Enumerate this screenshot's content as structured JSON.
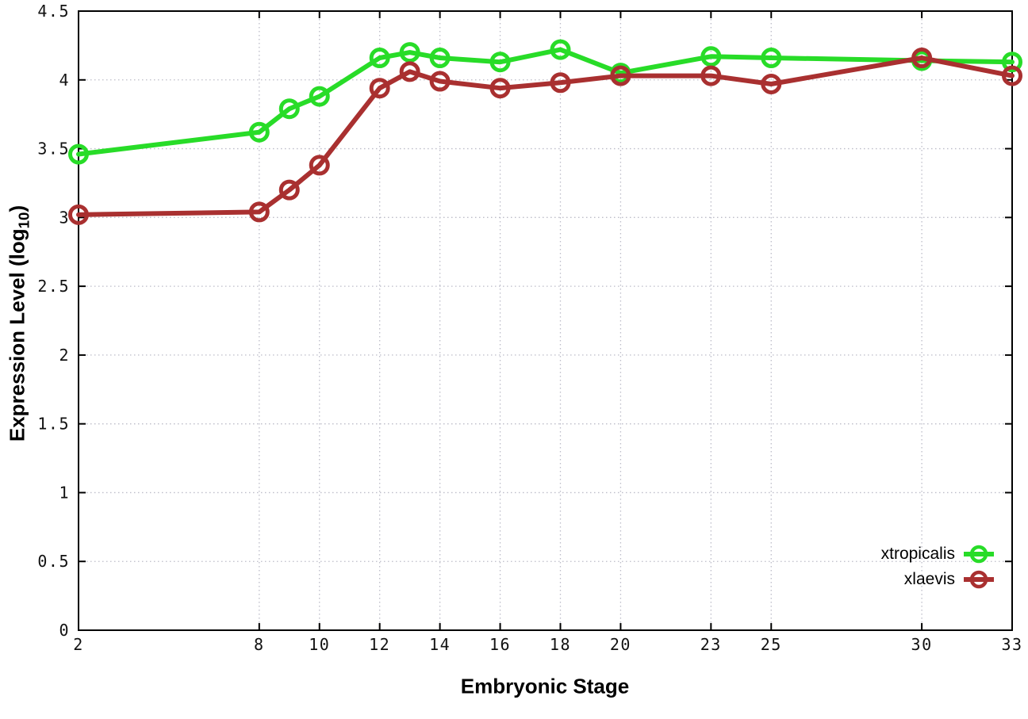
{
  "figure": {
    "background": "#ffffff",
    "border_color": "#000000",
    "grid_color": "#bcbcc8"
  },
  "chart_data": {
    "type": "line",
    "title": "",
    "xlabel": "Embryonic Stage",
    "ylabel": "Expression Level (log10)",
    "ylabel_parts": {
      "prefix": "Expression Level (log",
      "sub": "10",
      "suffix": ")"
    },
    "xlim": [
      2,
      33
    ],
    "ylim": [
      0,
      4.5
    ],
    "grid": true,
    "legend_position": "bottom-right",
    "marker": "open-circle",
    "x": [
      2,
      8,
      9,
      10,
      12,
      13,
      14,
      16,
      18,
      20,
      23,
      25,
      30,
      33
    ],
    "series": [
      {
        "name": "xtropicalis",
        "color": "#28dc28",
        "values": [
          3.46,
          3.62,
          3.79,
          3.88,
          4.16,
          4.2,
          4.16,
          4.13,
          4.22,
          4.05,
          4.17,
          4.16,
          4.14,
          4.13
        ]
      },
      {
        "name": "xlaevis",
        "color": "#a93030",
        "values": [
          3.02,
          3.04,
          3.2,
          3.38,
          3.94,
          4.06,
          3.99,
          3.94,
          3.98,
          4.03,
          4.03,
          3.97,
          4.16,
          4.03
        ]
      }
    ],
    "xticks": {
      "values": [
        2,
        8,
        10,
        12,
        14,
        16,
        18,
        20,
        23,
        25,
        30,
        33
      ],
      "labels": [
        "2",
        "8",
        "10",
        "12",
        "14",
        "16",
        "18",
        "20",
        "23",
        "25",
        "30",
        "33"
      ]
    },
    "yticks": {
      "values": [
        0,
        0.5,
        1,
        1.5,
        2,
        2.5,
        3,
        3.5,
        4,
        4.5
      ],
      "labels": [
        "0",
        "0.5",
        "1",
        "1.5",
        "2",
        "2.5",
        "3",
        "3.5",
        "4",
        "4.5"
      ]
    }
  }
}
